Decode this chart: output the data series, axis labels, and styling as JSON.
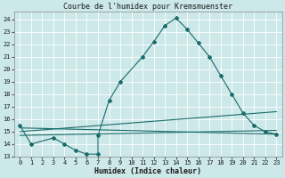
{
  "title": "Courbe de l'humidex pour Kremsmuenster",
  "xlabel": "Humidex (Indice chaleur)",
  "bg_color": "#cce8e8",
  "grid_color": "#ffffff",
  "line_color": "#1a6b6b",
  "xlim": [
    -0.5,
    23.5
  ],
  "ylim": [
    13.0,
    24.6
  ],
  "yticks": [
    13,
    14,
    15,
    16,
    17,
    18,
    19,
    20,
    21,
    22,
    23,
    24
  ],
  "xticks": [
    0,
    1,
    2,
    3,
    4,
    5,
    6,
    7,
    8,
    9,
    10,
    11,
    12,
    13,
    14,
    15,
    16,
    17,
    18,
    19,
    20,
    21,
    22,
    23
  ],
  "line1_x": [
    0,
    1,
    3,
    4,
    5,
    6,
    7,
    7,
    8,
    9,
    11,
    12,
    13,
    14,
    15,
    16,
    17,
    18,
    19,
    20,
    21,
    22,
    23
  ],
  "line1_y": [
    15.5,
    14.0,
    14.5,
    14.0,
    13.5,
    13.2,
    13.2,
    14.7,
    17.5,
    19.0,
    21.0,
    22.2,
    23.5,
    24.1,
    23.2,
    22.1,
    21.0,
    19.5,
    18.0,
    16.5,
    15.5,
    15.0,
    14.8
  ],
  "line2_x": [
    0,
    23
  ],
  "line2_y": [
    15.3,
    14.8
  ],
  "line3_x": [
    0,
    23
  ],
  "line3_y": [
    15.0,
    16.6
  ],
  "line4_x": [
    0,
    23
  ],
  "line4_y": [
    14.7,
    15.1
  ],
  "title_fontsize": 6.0,
  "xlabel_fontsize": 6.0,
  "tick_fontsize": 5.0
}
